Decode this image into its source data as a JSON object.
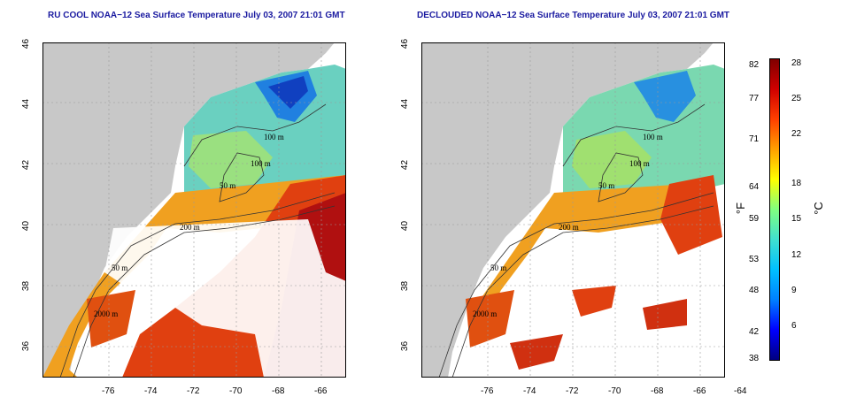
{
  "panels": [
    {
      "title": "RU COOL NOAA−12 Sea Surface Temperature July 03, 2007 21:01 GMT"
    },
    {
      "title": "DECLOUDED NOAA−12 Sea Surface Temperature July 03, 2007 21:01 GMT"
    }
  ],
  "axes": {
    "lat_ticks": [
      "46",
      "44",
      "42",
      "40",
      "38",
      "36"
    ],
    "lon_ticks": [
      "-76",
      "-74",
      "-72",
      "-70",
      "-68",
      "-66",
      "-64"
    ]
  },
  "contours": {
    "labels": [
      "100 m",
      "100 m",
      "50 m",
      "200 m",
      "50 m",
      "2000 m"
    ]
  },
  "colorbar": {
    "f_label": "°F",
    "c_label": "°C",
    "f_ticks": [
      "82",
      "77",
      "71",
      "64",
      "59",
      "53",
      "48",
      "42",
      "38"
    ],
    "c_ticks": [
      "28",
      "25",
      "22",
      "18",
      "15",
      "12",
      "9",
      "6"
    ],
    "colors": [
      "#000080",
      "#0000ff",
      "#0080ff",
      "#00c0ff",
      "#40e0d0",
      "#80ff80",
      "#ffff00",
      "#ffa000",
      "#ff4000",
      "#d00000",
      "#800000"
    ]
  }
}
